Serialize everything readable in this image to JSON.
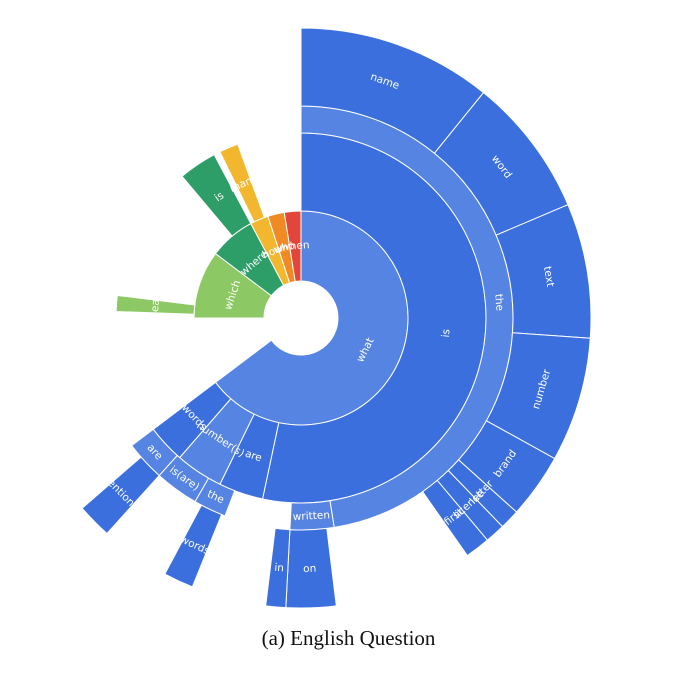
{
  "caption": "(a) English Question",
  "colors": {
    "blue_dark": "#3b6fdd",
    "blue_light": "#5684e2",
    "green_dark": "#2e9e68",
    "green_light": "#8cc964",
    "yellow": "#f2b72f",
    "orange": "#f08a24",
    "red": "#e2463a"
  },
  "chart_data": {
    "type": "sunburst",
    "title": "",
    "rings": [
      {
        "level": 1,
        "segments": [
          {
            "label": "what",
            "start": 0,
            "end": 233,
            "color": "#5684e2"
          },
          {
            "label": "which",
            "start": 270,
            "end": 307,
            "color": "#8cc964"
          },
          {
            "label": "where",
            "start": 307,
            "end": 332,
            "color": "#2e9e68"
          },
          {
            "label": "how",
            "start": 332,
            "end": 342,
            "color": "#f2b72f"
          },
          {
            "label": "who",
            "start": 342,
            "end": 351,
            "color": "#f08a24"
          },
          {
            "label": "when",
            "start": 351,
            "end": 360,
            "color": "#e2463a"
          }
        ]
      },
      {
        "level": 2,
        "segments": [
          {
            "label": "is",
            "start": 0,
            "end": 192,
            "color": "#3b6fdd"
          },
          {
            "label": "are",
            "start": 192,
            "end": 206,
            "color": "#3b6fdd"
          },
          {
            "label": "number(s)",
            "start": 206,
            "end": 221,
            "color": "#5684e2"
          },
          {
            "label": "words",
            "start": 221,
            "end": 233,
            "color": "#3b6fdd"
          },
          {
            "label": "year",
            "start": 272,
            "end": 277,
            "color": "#8cc964"
          },
          {
            "label": "is",
            "start": 320,
            "end": 332,
            "color": "#2e9e68"
          },
          {
            "label": "many",
            "start": 334,
            "end": 340,
            "color": "#f2b72f"
          }
        ]
      },
      {
        "level": 3,
        "segments": [
          {
            "label": "the",
            "start": 0,
            "end": 171,
            "color": "#5684e2"
          },
          {
            "label": "written",
            "start": 171,
            "end": 183,
            "color": "#5684e2"
          },
          {
            "label": "the",
            "start": 201,
            "end": 210,
            "color": "#5684e2"
          },
          {
            "label": "is(are)",
            "start": 210,
            "end": 222,
            "color": "#5684e2"
          },
          {
            "label": "are",
            "start": 222,
            "end": 233,
            "color": "#5684e2"
          }
        ]
      },
      {
        "level": 4,
        "segments": [
          {
            "label": "name",
            "start": 0,
            "end": 39,
            "color": "#3b6fdd"
          },
          {
            "label": "word",
            "start": 39,
            "end": 67,
            "color": "#3b6fdd"
          },
          {
            "label": "text",
            "start": 67,
            "end": 94,
            "color": "#3b6fdd"
          },
          {
            "label": "number",
            "start": 94,
            "end": 119,
            "color": "#3b6fdd"
          },
          {
            "label": "brand",
            "start": 119,
            "end": 132,
            "color": "#3b6fdd"
          },
          {
            "label": "letter",
            "start": 132,
            "end": 136,
            "color": "#3b6fdd"
          },
          {
            "label": "license",
            "start": 136,
            "end": 140,
            "color": "#3b6fdd"
          },
          {
            "label": "first",
            "start": 140,
            "end": 145,
            "color": "#3b6fdd"
          },
          {
            "label": "on",
            "start": 173,
            "end": 183,
            "color": "#3b6fdd"
          },
          {
            "label": "in",
            "start": 183,
            "end": 187,
            "color": "#3b6fdd"
          },
          {
            "label": "words",
            "start": 202,
            "end": 208,
            "color": "#3b6fdd"
          },
          {
            "label": "mentioned",
            "start": 222,
            "end": 229,
            "color": "#3b6fdd"
          }
        ]
      }
    ]
  }
}
